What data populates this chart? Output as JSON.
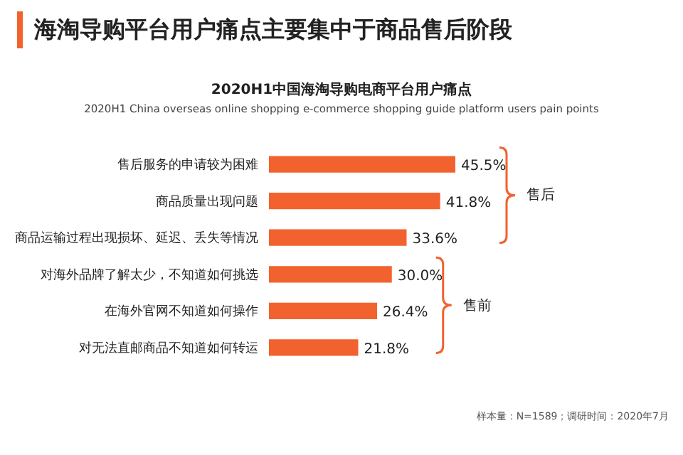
{
  "chart_data": {
    "type": "bar",
    "orientation": "horizontal",
    "data_labels": true,
    "title": "海淘导购平台用户痛点主要集中于商品售后阶段",
    "subtitle": "2020H1中国海淘导购电商平台用户痛点",
    "categories": [
      "售后服务的申请较为困难",
      "商品质量出现问题",
      "商品运输过程出现损坏、延迟、丢失等情况",
      "对海外品牌了解太少，不知道如何挑选",
      "在海外官网不知道如何操作",
      "对无法直邮商品不知道如何转运"
    ],
    "values": [
      45.5,
      41.8,
      33.6,
      30.0,
      26.4,
      21.8
    ],
    "value_labels": [
      "45.5%",
      "41.8%",
      "33.6%",
      "30.0%",
      "26.4%",
      "21.8%"
    ],
    "color": "#f2622e",
    "annotations": [
      "2020H1 China overseas online shopping e-commerce shopping guide platform users pain points",
      "售后",
      "售前",
      "样本量：N=1589；调研时间：2020年7月"
    ]
  }
}
